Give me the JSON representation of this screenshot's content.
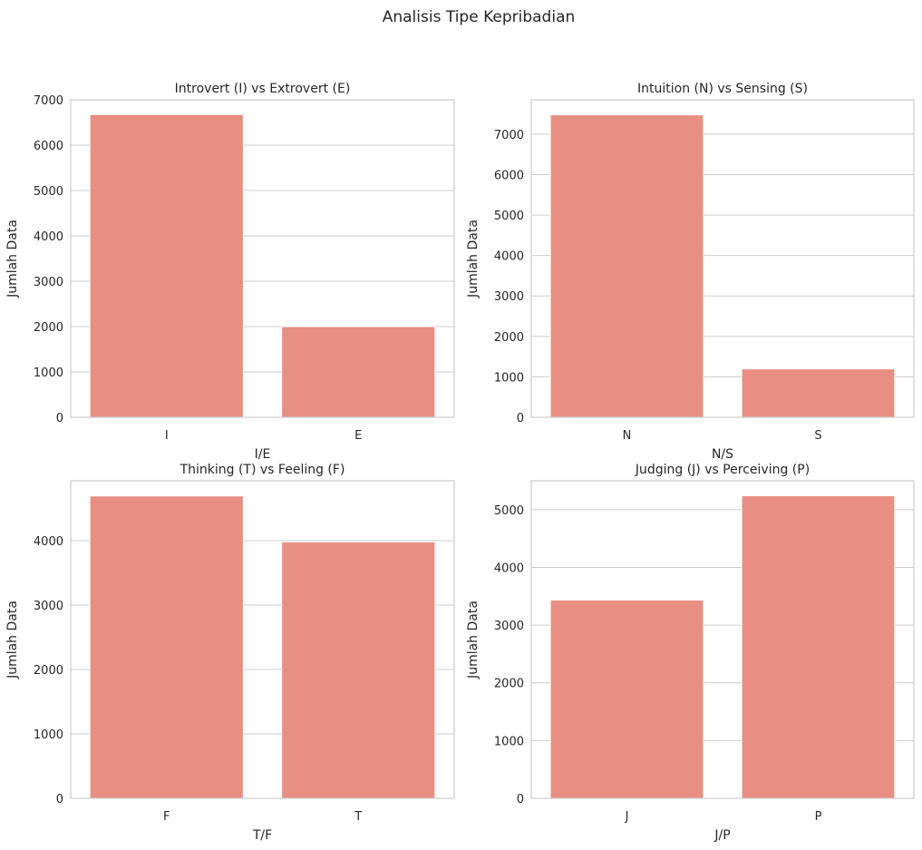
{
  "figure_title": "Analisis Tipe Kepribadian",
  "colors": {
    "bar": "#e88e82",
    "grid": "#cccccc",
    "text": "#262626"
  },
  "chart_data": [
    {
      "type": "bar",
      "title": "Introvert (I) vs Extrovert (E)",
      "xlabel": "I/E",
      "ylabel": "Jumlah Data",
      "categories": [
        "I",
        "E"
      ],
      "values": [
        6676,
        1999
      ],
      "ylim": [
        0,
        7000
      ],
      "yticks": [
        0,
        1000,
        2000,
        3000,
        4000,
        5000,
        6000,
        7000
      ],
      "grid": true
    },
    {
      "type": "bar",
      "title": "Intuition (N) vs Sensing (S)",
      "xlabel": "N/S",
      "ylabel": "Jumlah Data",
      "categories": [
        "N",
        "S"
      ],
      "values": [
        7478,
        1197
      ],
      "ylim": [
        0,
        7850
      ],
      "yticks": [
        0,
        1000,
        2000,
        3000,
        4000,
        5000,
        6000,
        7000
      ],
      "grid": true
    },
    {
      "type": "bar",
      "title": "Thinking (T) vs Feeling (F)",
      "xlabel": "T/F",
      "ylabel": "Jumlah Data",
      "categories": [
        "F",
        "T"
      ],
      "values": [
        4694,
        3981
      ],
      "ylim": [
        0,
        4930
      ],
      "yticks": [
        0,
        1000,
        2000,
        3000,
        4000
      ],
      "grid": true
    },
    {
      "type": "bar",
      "title": "Judging (J) vs Perceiving (P)",
      "xlabel": "J/P",
      "ylabel": "Jumlah Data",
      "categories": [
        "J",
        "P"
      ],
      "values": [
        3434,
        5241
      ],
      "ylim": [
        0,
        5500
      ],
      "yticks": [
        0,
        1000,
        2000,
        3000,
        4000,
        5000
      ],
      "grid": true
    }
  ]
}
